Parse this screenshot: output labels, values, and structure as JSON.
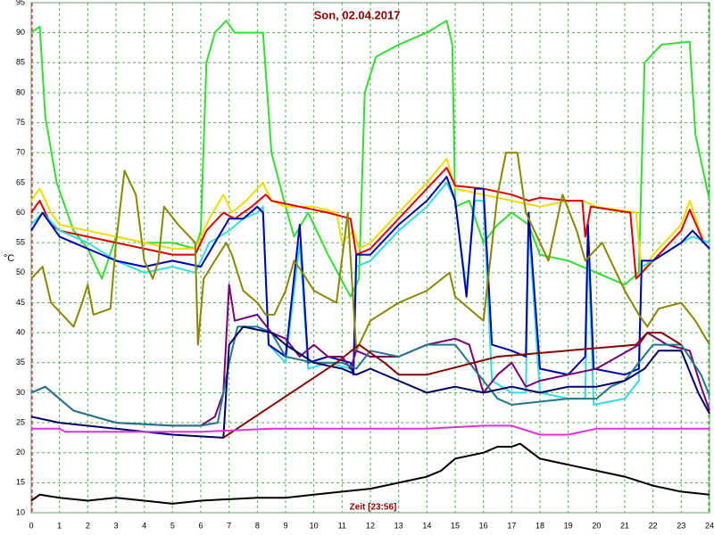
{
  "chart_data": {
    "type": "line",
    "title": "Son, 02.04.2017",
    "ylabel": "°C",
    "xlabel": "Zeit [23:56]",
    "xlim": [
      0,
      24
    ],
    "xticks": [
      0,
      1,
      2,
      3,
      4,
      5,
      6,
      7,
      8,
      9,
      10,
      11,
      12,
      13,
      14,
      15,
      16,
      17,
      18,
      19,
      20,
      21,
      22,
      23,
      24
    ],
    "ylim": [
      10,
      95
    ],
    "yticks": [
      10,
      15,
      20,
      25,
      30,
      35,
      40,
      45,
      50,
      55,
      60,
      65,
      70,
      75,
      80,
      85,
      90,
      95
    ],
    "grid": true,
    "series": [
      {
        "color": "#33dd33",
        "x": [
          0,
          0.3,
          0.5,
          0.9,
          1.5,
          2,
          2.5,
          3,
          4,
          5,
          5.8,
          6,
          6.2,
          6.5,
          6.9,
          7.2,
          8.2,
          8.5,
          9,
          9.3,
          9.8,
          10.5,
          11.3,
          11.6,
          11.8,
          12.2,
          13,
          14,
          14.7,
          14.9,
          15,
          15.5,
          16,
          16.5,
          17,
          17.6,
          18,
          19,
          20,
          21,
          21.5,
          21.7,
          22.3,
          23.3,
          23.5,
          24
        ],
        "values": [
          90,
          91,
          76,
          65,
          57,
          54,
          49,
          56,
          55,
          55,
          54,
          57,
          85,
          90,
          92,
          90,
          90,
          70,
          61,
          56,
          60,
          53,
          46,
          49,
          80,
          86,
          88,
          90,
          92,
          88,
          61,
          62,
          55,
          58,
          60,
          58,
          53,
          52,
          50,
          48,
          50,
          85,
          88,
          88.5,
          73,
          62
        ]
      },
      {
        "color": "#eedd00",
        "x": [
          0,
          0.3,
          0.7,
          1,
          2,
          3,
          4,
          5,
          5.8,
          6.3,
          6.8,
          7.1,
          7.6,
          8.2,
          8.5,
          9,
          10,
          10.8,
          11,
          11.4,
          11.6,
          12,
          13,
          14,
          14.7,
          15,
          16,
          17,
          18,
          19,
          19.5,
          20,
          21.4,
          21.6,
          22,
          23,
          23.3,
          23.8,
          24
        ],
        "values": [
          62,
          64,
          60,
          58,
          57,
          56,
          55,
          54,
          54,
          59,
          63,
          60,
          62,
          65,
          62,
          61,
          61,
          60,
          55,
          57,
          54,
          55,
          60,
          65,
          69,
          64,
          63,
          62,
          61,
          62,
          62,
          61,
          60,
          50,
          53,
          58,
          62,
          55,
          54
        ]
      },
      {
        "color": "#dd0000",
        "x": [
          0,
          0.3,
          0.7,
          1,
          2,
          3,
          4,
          5,
          5.8,
          6.2,
          6.8,
          7.2,
          7.8,
          8.3,
          8.5,
          9.5,
          10.5,
          11.3,
          11.5,
          12,
          13,
          14,
          14.7,
          15,
          16,
          17,
          17.6,
          18,
          19,
          19.5,
          19.6,
          19.8,
          21.2,
          21.4,
          22,
          23,
          23.3,
          23.8,
          24
        ],
        "values": [
          60,
          62,
          58,
          57,
          56,
          55,
          54,
          53,
          53,
          57,
          60,
          59,
          61,
          63,
          62,
          61,
          60,
          59,
          53,
          54,
          59,
          64,
          67.5,
          64.5,
          64,
          63,
          62,
          62.5,
          62,
          62,
          56,
          61,
          60,
          49,
          52,
          57,
          60.5,
          55,
          54
        ]
      },
      {
        "color": "#33dddd",
        "x": [
          0,
          0.4,
          1,
          2,
          3,
          4,
          5,
          5.8,
          6.3,
          7,
          7.5,
          8,
          8.2,
          8.4,
          9,
          9.5,
          9.8,
          10.5,
          11.3,
          11.4,
          11.5,
          12,
          13,
          14,
          14.7,
          15,
          15.4,
          15.7,
          16,
          16.3,
          17,
          17.5,
          17.6,
          18,
          19,
          19.6,
          19.7,
          19.9,
          21,
          21.5,
          21.6,
          22,
          23,
          23.4,
          24
        ],
        "values": [
          58,
          60,
          57,
          55,
          52,
          50,
          51,
          50,
          55,
          57,
          59,
          60,
          61,
          38,
          35,
          55,
          34,
          35,
          34,
          33,
          51,
          52,
          57,
          61,
          65,
          62,
          47,
          62,
          62,
          32,
          30,
          30,
          58,
          30,
          29,
          29,
          55,
          28,
          29,
          32,
          51,
          52,
          55,
          56,
          55
        ]
      },
      {
        "color": "#0000aa",
        "x": [
          0,
          0.4,
          1,
          2,
          3,
          4,
          5,
          6,
          6.5,
          7,
          7.5,
          8,
          8.2,
          8.4,
          9,
          9.5,
          9.8,
          10.5,
          11.3,
          11.4,
          11.5,
          12,
          13,
          14,
          14.7,
          15,
          15.4,
          15.7,
          16,
          16.3,
          17,
          17.5,
          17.6,
          18,
          19,
          19.6,
          19.7,
          19.9,
          21,
          21.5,
          21.6,
          22,
          23,
          23.4,
          24
        ],
        "values": [
          57,
          60,
          56,
          54,
          52,
          51,
          52,
          51,
          55,
          59,
          59,
          61,
          60,
          38,
          36,
          58,
          35,
          36,
          35,
          33,
          53,
          53,
          58,
          62,
          66,
          62,
          46,
          64,
          64,
          38,
          37,
          36,
          60,
          34,
          33,
          36,
          58,
          34,
          33,
          34,
          52,
          52,
          55,
          57,
          54
        ]
      },
      {
        "color": "#888800",
        "x": [
          0,
          0.4,
          0.7,
          1.5,
          1.8,
          2,
          2.2,
          2.8,
          3,
          3.3,
          3.7,
          4,
          4.3,
          4.5,
          4.7,
          5.2,
          5.8,
          5.9,
          6.1,
          6.5,
          6.9,
          7.1,
          7.5,
          8,
          8.3,
          8.6,
          9,
          9.3,
          9.6,
          10,
          10.8,
          11.2,
          11.5,
          12,
          13,
          14,
          14.8,
          15,
          15.5,
          16,
          16.5,
          16.8,
          17.2,
          17.5,
          18,
          18.3,
          18.8,
          19.3,
          19.6,
          20.2,
          21,
          21.5,
          21.8,
          22.2,
          23,
          23.5,
          24
        ],
        "values": [
          49,
          51,
          45,
          41,
          45,
          48,
          43,
          44,
          55,
          67,
          63,
          52,
          49,
          52,
          61,
          58,
          55,
          38,
          49,
          52,
          55,
          53,
          47,
          45,
          43,
          43,
          47,
          52,
          50,
          47,
          45,
          60,
          37,
          42,
          45,
          47,
          50,
          46,
          44,
          42,
          63,
          70,
          70,
          60,
          55,
          52,
          63,
          57,
          52,
          55,
          47,
          43,
          41,
          44,
          45,
          42,
          38
        ]
      },
      {
        "color": "#770077",
        "x": [
          0,
          0.5,
          1.5,
          3,
          5,
          6,
          6.5,
          6.8,
          7,
          7.2,
          8,
          8.5,
          9,
          9.5,
          10,
          10.5,
          11,
          11.3,
          11.5,
          12,
          13,
          14,
          15,
          15.5,
          16,
          16.5,
          17,
          17.5,
          18,
          19,
          20,
          21.5,
          21.8,
          22.5,
          23.3,
          23.7,
          24
        ],
        "values": [
          30,
          31,
          27,
          25,
          24.5,
          24.5,
          26,
          30,
          48,
          42,
          43,
          40,
          39,
          36,
          38,
          36,
          36,
          34,
          37,
          36,
          36,
          38,
          39,
          38,
          30,
          33,
          35,
          31,
          32,
          33,
          34,
          38,
          40,
          38,
          37,
          31,
          27
        ]
      },
      {
        "color": "#227788",
        "x": [
          0,
          0.5,
          1.5,
          3,
          5,
          6,
          6.6,
          7,
          7.3,
          8,
          8.5,
          9,
          10,
          11,
          11.5,
          12,
          13,
          14,
          15,
          15.5,
          16.5,
          17,
          18,
          19,
          20,
          20.5,
          21,
          21.5,
          22,
          23,
          23.7,
          24
        ],
        "values": [
          30,
          31,
          27,
          25,
          24.5,
          24.5,
          25,
          35,
          41,
          41,
          40,
          36,
          35,
          35,
          34,
          37,
          36,
          38,
          38,
          35,
          29,
          28,
          28.5,
          29,
          29,
          31,
          32,
          35,
          38,
          38,
          33,
          29.5
        ]
      },
      {
        "color": "#000066",
        "x": [
          0,
          1,
          3,
          5,
          6.8,
          7,
          7.5,
          8.5,
          9,
          10,
          11,
          11.5,
          12,
          13,
          14,
          15,
          16,
          17,
          18,
          19,
          20,
          21,
          21.7,
          22.2,
          23,
          23.6,
          24
        ],
        "values": [
          26,
          25,
          24,
          23,
          22.5,
          38,
          41,
          40,
          38,
          35,
          34,
          33,
          34,
          32,
          30,
          31,
          30,
          31,
          30,
          31,
          31,
          32,
          34,
          37,
          37,
          30,
          26.5
        ]
      },
      {
        "color": "#880000",
        "x": [
          6.8,
          10.8,
          11.6,
          12.5,
          13,
          14,
          16.5,
          21.4,
          21.8,
          22.3,
          23
        ],
        "values": [
          22.5,
          35,
          38,
          35,
          33,
          33,
          36,
          38,
          40,
          40,
          38
        ]
      },
      {
        "color": "#dd33dd",
        "x": [
          0,
          1,
          1.2,
          6,
          8.5,
          14,
          16,
          17,
          18,
          19,
          20,
          24
        ],
        "values": [
          24,
          24,
          23.5,
          23.5,
          24,
          24,
          24.5,
          24.5,
          23,
          23,
          24,
          24
        ]
      },
      {
        "color": "#000000",
        "x": [
          0,
          0.3,
          1,
          2,
          3,
          4,
          5,
          6,
          8,
          9,
          10,
          11,
          12,
          13,
          14,
          14.5,
          15,
          16,
          16.5,
          17,
          17.3,
          18,
          19,
          20,
          21,
          22,
          23,
          24
        ],
        "values": [
          12,
          13,
          12.5,
          12,
          12.5,
          12,
          11.5,
          12,
          12.5,
          12.5,
          13,
          13.5,
          14,
          15,
          16,
          17,
          19,
          20,
          21,
          21,
          21.5,
          19,
          18,
          17,
          16,
          14.5,
          13.5,
          13
        ]
      }
    ]
  }
}
